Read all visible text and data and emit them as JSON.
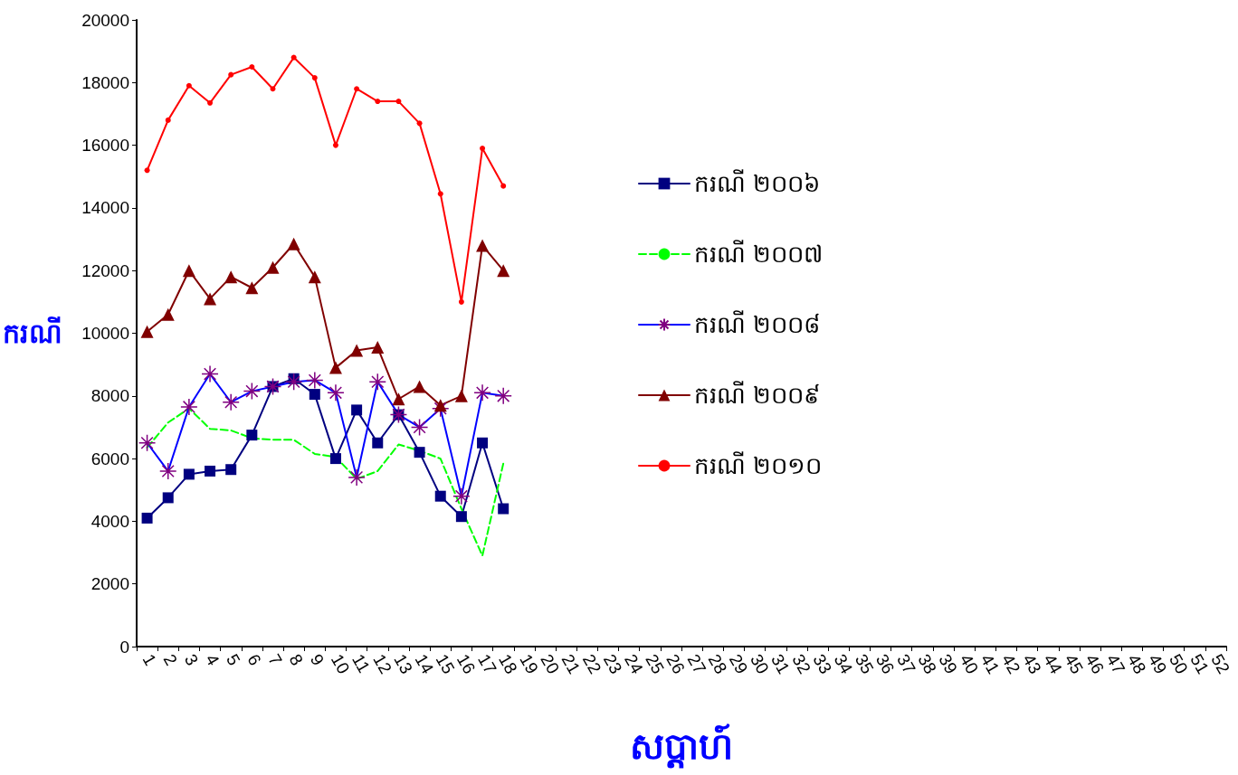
{
  "chart_data": {
    "type": "line",
    "xlabel": "សប្តាហ៍",
    "ylabel": "ករណី",
    "categories": [
      "1",
      "2",
      "3",
      "4",
      "5",
      "6",
      "7",
      "8",
      "9",
      "10",
      "11",
      "12",
      "13",
      "14",
      "15",
      "16",
      "17",
      "18",
      "19",
      "20",
      "21",
      "22",
      "23",
      "24",
      "25",
      "26",
      "27",
      "28",
      "29",
      "30",
      "31",
      "32",
      "33",
      "34",
      "35",
      "36",
      "37",
      "38",
      "39",
      "40",
      "41",
      "42",
      "43",
      "44",
      "45",
      "46",
      "47",
      "48",
      "49",
      "50",
      "51",
      "52"
    ],
    "ylim": [
      0,
      20000
    ],
    "yticks": [
      0,
      2000,
      4000,
      6000,
      8000,
      10000,
      12000,
      14000,
      16000,
      18000,
      20000
    ],
    "grid": false,
    "legend": "center",
    "series": [
      {
        "name": "ករណី ២០០៦",
        "color": "#000080",
        "marker": "square",
        "line_style": "solid",
        "values": [
          4100,
          4750,
          5500,
          5600,
          5650,
          6750,
          8300,
          8550,
          8050,
          6000,
          7550,
          6500,
          7400,
          6200,
          4800,
          4150,
          6500,
          4400,
          null,
          null,
          null,
          null,
          null,
          null,
          null,
          null,
          null,
          null,
          null,
          null,
          null,
          null,
          null,
          null,
          null,
          null,
          null,
          null,
          null,
          null,
          null,
          null,
          null,
          null,
          null,
          null,
          null,
          null,
          null,
          null,
          null,
          null
        ]
      },
      {
        "name": "ករណី ២០០៧",
        "color": "#00ff00",
        "marker": "none",
        "line_style": "dashed",
        "values": [
          6350,
          7150,
          7600,
          6950,
          6900,
          6650,
          6600,
          6600,
          6150,
          6050,
          5350,
          5600,
          6450,
          6250,
          6000,
          4400,
          2900,
          5850,
          null,
          null,
          null,
          null,
          null,
          null,
          null,
          null,
          null,
          null,
          null,
          null,
          null,
          null,
          null,
          null,
          null,
          null,
          null,
          null,
          null,
          null,
          null,
          null,
          null,
          null,
          null,
          null,
          null,
          null,
          null,
          null,
          null,
          null
        ]
      },
      {
        "name": "ករណី ២០០៨",
        "color": "#0000ff",
        "marker": "cross",
        "line_style": "solid",
        "values": [
          6500,
          5600,
          7650,
          8700,
          7800,
          8150,
          8300,
          8450,
          8500,
          8100,
          5400,
          8450,
          7400,
          7000,
          7600,
          4800,
          8100,
          8000,
          null,
          null,
          null,
          null,
          null,
          null,
          null,
          null,
          null,
          null,
          null,
          null,
          null,
          null,
          null,
          null,
          null,
          null,
          null,
          null,
          null,
          null,
          null,
          null,
          null,
          null,
          null,
          null,
          null,
          null,
          null,
          null,
          null,
          null
        ]
      },
      {
        "name": "ករណី ២០០៩",
        "color": "#800000",
        "marker": "triangle",
        "line_style": "solid",
        "values": [
          10050,
          10600,
          12000,
          11100,
          11800,
          11450,
          12100,
          12850,
          11800,
          8900,
          9450,
          9550,
          7900,
          8300,
          7700,
          8000,
          12800,
          12000,
          null,
          null,
          null,
          null,
          null,
          null,
          null,
          null,
          null,
          null,
          null,
          null,
          null,
          null,
          null,
          null,
          null,
          null,
          null,
          null,
          null,
          null,
          null,
          null,
          null,
          null,
          null,
          null,
          null,
          null,
          null,
          null,
          null,
          null
        ]
      },
      {
        "name": "ករណី ២០១០",
        "color": "#ff0000",
        "marker": "circle",
        "line_style": "solid",
        "values": [
          15200,
          16800,
          17900,
          17350,
          18250,
          18500,
          17800,
          18800,
          18150,
          16000,
          17800,
          17400,
          17400,
          16700,
          14450,
          11000,
          15900,
          14700,
          null,
          null,
          null,
          null,
          null,
          null,
          null,
          null,
          null,
          null,
          null,
          null,
          null,
          null,
          null,
          null,
          null,
          null,
          null,
          null,
          null,
          null,
          null,
          null,
          null,
          null,
          null,
          null,
          null,
          null,
          null,
          null,
          null,
          null
        ]
      }
    ]
  }
}
